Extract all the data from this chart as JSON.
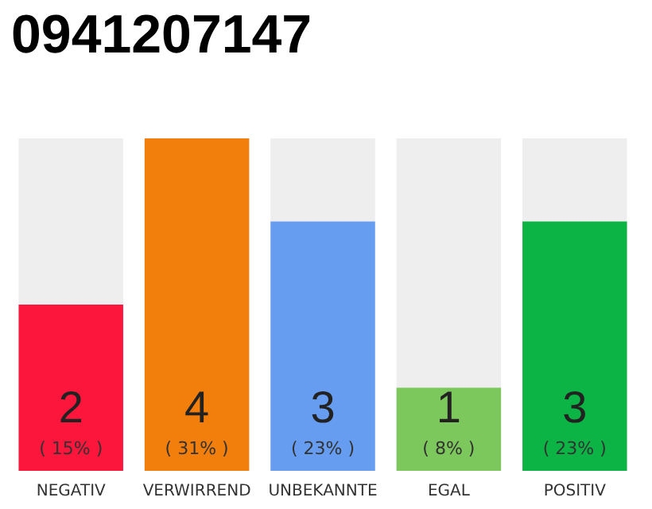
{
  "chart_data": {
    "type": "bar",
    "title": "0941207147",
    "tick_labels": "x",
    "categories": [
      "NEGATIV",
      "VERWIRREND",
      "UNBEKANNTE",
      "EGAL",
      "POSITIV"
    ],
    "values": [
      2,
      4,
      3,
      1,
      3
    ],
    "colors": [
      "#fc163c",
      "#f27e0c",
      "#669df0",
      "#7dc85c",
      "#0bb444"
    ],
    "value_labels": [
      "2\n( 15% )",
      "4\n( 31% )",
      "3\n( 23% )",
      "1\n( 8% )",
      "3\n( 23% )"
    ]
  }
}
